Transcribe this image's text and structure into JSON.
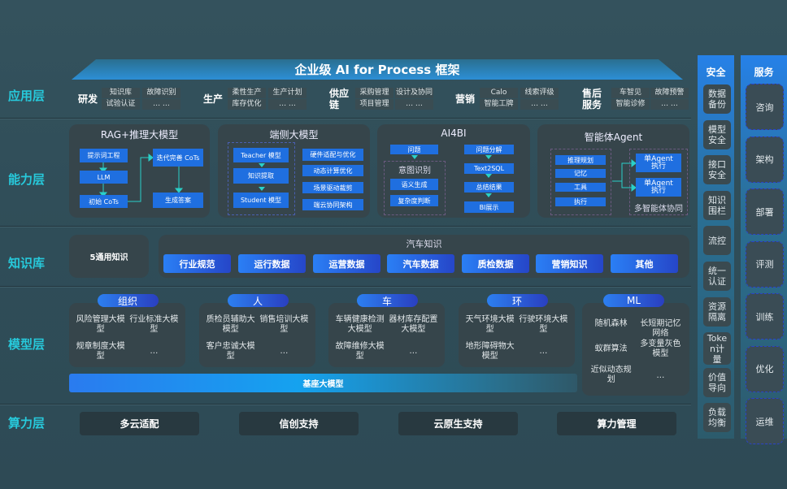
{
  "title": "企业级 AI for Process 框架",
  "layers": [
    "应用层",
    "能力层",
    "知识库",
    "模型层",
    "算力层"
  ],
  "app_groups": [
    {
      "name": "研发",
      "items": [
        "知识库",
        "故障识别",
        "试验认证",
        "… …"
      ]
    },
    {
      "name": "生产",
      "items": [
        "柔性生产",
        "生产计划",
        "库存优化",
        "… …"
      ]
    },
    {
      "name": "供应链",
      "items": [
        "采购管理",
        "设计及协同",
        "项目管理",
        "… …"
      ]
    },
    {
      "name": "营销",
      "items": [
        "Calo",
        "线索评级",
        "智能工牌",
        "… …"
      ]
    },
    {
      "name": "售后服务",
      "items": [
        "车智见",
        "故障预警",
        "智能诊修",
        "… …"
      ]
    }
  ],
  "capabilities": {
    "rag": {
      "title": "RAG+推理大模型",
      "prompt": "提示词工程",
      "llm": "LLM",
      "init": "初始 CoTs",
      "iter": "迭代完善 CoTs",
      "answer": "生成答案"
    },
    "edge": {
      "title": "端侧大模型",
      "teacher": "Teacher 模型",
      "distill": "知识提取",
      "student": "Student 模型",
      "right": [
        "硬件适配与优化",
        "动态计算优化",
        "场景驱动裁剪",
        "端云协同架构"
      ]
    },
    "ai4bi": {
      "title": "AI4BI",
      "question": "问题",
      "intent": "意图识别",
      "semantic": "语义生成",
      "complexity": "复杂度判断",
      "right": [
        "问题分解",
        "Text2SQL",
        "总结结果",
        "BI展示"
      ]
    },
    "agent": {
      "title": "智能体Agent",
      "items": [
        "推理规划",
        "记忆",
        "工具",
        "执行"
      ],
      "single": "单Agent执行",
      "multi": "多智能体协同"
    }
  },
  "knowledge": {
    "general": "5通用知识",
    "auto_title": "汽车知识",
    "chips": [
      "行业规范",
      "运行数据",
      "运营数据",
      "汽车数据",
      "质检数据",
      "营销知识",
      "其他"
    ]
  },
  "models": [
    {
      "name": "组织",
      "items": [
        "风险管理大模型",
        "行业标准大模型",
        "规章制度大模型",
        "…"
      ]
    },
    {
      "name": "人",
      "items": [
        "质检员辅助大模型",
        "销售培训大模型",
        "客户忠诚大模型",
        "…"
      ]
    },
    {
      "name": "车",
      "items": [
        "车辆健康检测大模型",
        "器材库存配置大模型",
        "故障维修大模型",
        "…"
      ]
    },
    {
      "name": "环",
      "items": [
        "天气环境大模型",
        "行驶环境大模型",
        "地形障碍物大模型",
        "…"
      ]
    },
    {
      "name": "ML",
      "items": [
        "随机森林",
        "长短期记忆网络",
        "蚁群算法",
        "多变量灰色模型",
        "近似动态规划",
        "…"
      ]
    }
  ],
  "base_model": "基座大模型",
  "compute": [
    "多云适配",
    "信创支持",
    "云原生支持",
    "算力管理"
  ],
  "security": {
    "title": "安全",
    "items": [
      "数据备份",
      "模型安全",
      "接口安全",
      "知识围栏",
      "流控",
      "统一认证",
      "资源隔离",
      "Token计量",
      "价值导向",
      "负载均衡"
    ]
  },
  "service": {
    "title": "服务",
    "items": [
      "咨询",
      "架构",
      "部署",
      "评测",
      "训练",
      "优化",
      "运维"
    ]
  },
  "colors": {
    "accent": "#27c9db",
    "blue": "#1f6fe0",
    "bg": "#2f4d58"
  }
}
